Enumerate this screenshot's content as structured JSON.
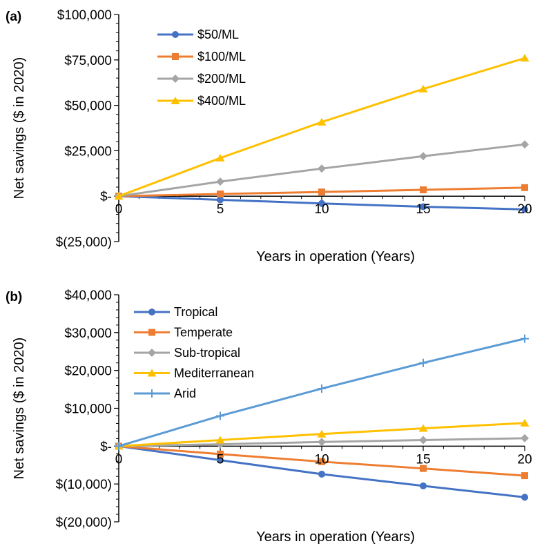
{
  "chart_data": [
    {
      "panel_label": "(a)",
      "type": "line",
      "xlabel": "Years in operation (Years)",
      "ylabel": "Net savings ($ in 2020)",
      "x": [
        0,
        5,
        10,
        15,
        20
      ],
      "x_ticks": [
        "0",
        "5",
        "10",
        "15",
        "20"
      ],
      "y_ticks": [
        {
          "value": 100000,
          "label": "$100,000"
        },
        {
          "value": 75000,
          "label": "$75,000"
        },
        {
          "value": 50000,
          "label": "$50,000"
        },
        {
          "value": 25000,
          "label": "$25,000"
        },
        {
          "value": 0,
          "label": "$-"
        },
        {
          "value": -25000,
          "label": "$(25,000)"
        }
      ],
      "ylim": [
        -25000,
        100000
      ],
      "xlim": [
        0,
        20
      ],
      "legend": "top-left",
      "grid": false,
      "series": [
        {
          "name": "$50/ML",
          "color": "#4472C4",
          "marker": "circle",
          "values": [
            0,
            -2000,
            -4000,
            -5800,
            -7300
          ]
        },
        {
          "name": "$100/ML",
          "color": "#ED7D31",
          "marker": "square",
          "values": [
            0,
            1200,
            2300,
            3500,
            4700
          ]
        },
        {
          "name": "$200/ML",
          "color": "#A5A5A5",
          "marker": "diamond",
          "values": [
            0,
            8000,
            15200,
            22000,
            28500
          ]
        },
        {
          "name": "$400/ML",
          "color": "#FFC000",
          "marker": "triangle",
          "values": [
            0,
            21000,
            40800,
            59000,
            76000
          ]
        }
      ]
    },
    {
      "panel_label": "(b)",
      "type": "line",
      "xlabel": "Years in operation (Years)",
      "ylabel": "Net savings ($ in 2020)",
      "x": [
        0,
        5,
        10,
        15,
        20
      ],
      "x_ticks": [
        "0",
        "5",
        "10",
        "15",
        "20"
      ],
      "y_ticks": [
        {
          "value": 40000,
          "label": "$40,000"
        },
        {
          "value": 30000,
          "label": "$30,000"
        },
        {
          "value": 20000,
          "label": "$20,000"
        },
        {
          "value": 10000,
          "label": "$10,000"
        },
        {
          "value": 0,
          "label": "$-"
        },
        {
          "value": -10000,
          "label": "$(10,000)"
        },
        {
          "value": -20000,
          "label": "$(20,000)"
        }
      ],
      "ylim": [
        -20000,
        40000
      ],
      "xlim": [
        0,
        20
      ],
      "legend": "top-left",
      "grid": false,
      "series": [
        {
          "name": "Tropical",
          "color": "#4472C4",
          "marker": "circle",
          "values": [
            0,
            -3700,
            -7400,
            -10500,
            -13500
          ]
        },
        {
          "name": "Temperate",
          "color": "#ED7D31",
          "marker": "square",
          "values": [
            0,
            -2100,
            -4100,
            -5900,
            -7800
          ]
        },
        {
          "name": "Sub-tropical",
          "color": "#A5A5A5",
          "marker": "diamond",
          "values": [
            0,
            500,
            1100,
            1600,
            2100
          ]
        },
        {
          "name": "Mediterranean",
          "color": "#FFC000",
          "marker": "triangle",
          "values": [
            0,
            1600,
            3200,
            4700,
            6100
          ]
        },
        {
          "name": "Arid",
          "color": "#5B9BD5",
          "marker": "plus",
          "values": [
            0,
            8000,
            15200,
            22000,
            28400
          ]
        }
      ]
    }
  ]
}
